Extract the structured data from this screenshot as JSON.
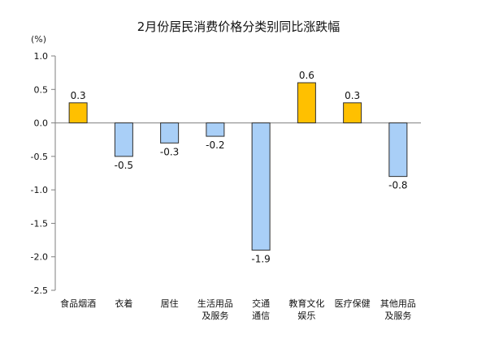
{
  "chart_data": {
    "type": "bar",
    "title": "2月份居民消费价格分类别同比涨跌幅",
    "ylabel": "(%)",
    "xlabel": "",
    "categories": [
      [
        "食品烟酒"
      ],
      [
        "衣着"
      ],
      [
        "居住"
      ],
      [
        "生活用品",
        "及服务"
      ],
      [
        "交通",
        "通信"
      ],
      [
        "教育文化",
        "娱乐"
      ],
      [
        "医疗保健"
      ],
      [
        "其他用品",
        "及服务"
      ]
    ],
    "values": [
      0.3,
      -0.5,
      -0.3,
      -0.2,
      -1.9,
      0.6,
      0.3,
      -0.8
    ],
    "value_labels": [
      "0.3",
      "-0.5",
      "-0.3",
      "-0.2",
      "-1.9",
      "0.6",
      "0.3",
      "-0.8"
    ],
    "ylim": [
      -2.5,
      1.0
    ],
    "yticks": [
      "1.0",
      "0.5",
      "0.0",
      "-0.5",
      "-1.0",
      "-1.5",
      "-2.0",
      "-2.5"
    ],
    "ytick_values": [
      1.0,
      0.5,
      0.0,
      -0.5,
      -1.0,
      -1.5,
      -2.0,
      -2.5
    ],
    "grid": false,
    "legend": "none",
    "colors": {
      "positive": "#FFC000",
      "negative": "#A9CFF7",
      "bar_stroke": "#2f2f2f",
      "axis": "#7f7f7f",
      "text": "#111111"
    }
  }
}
